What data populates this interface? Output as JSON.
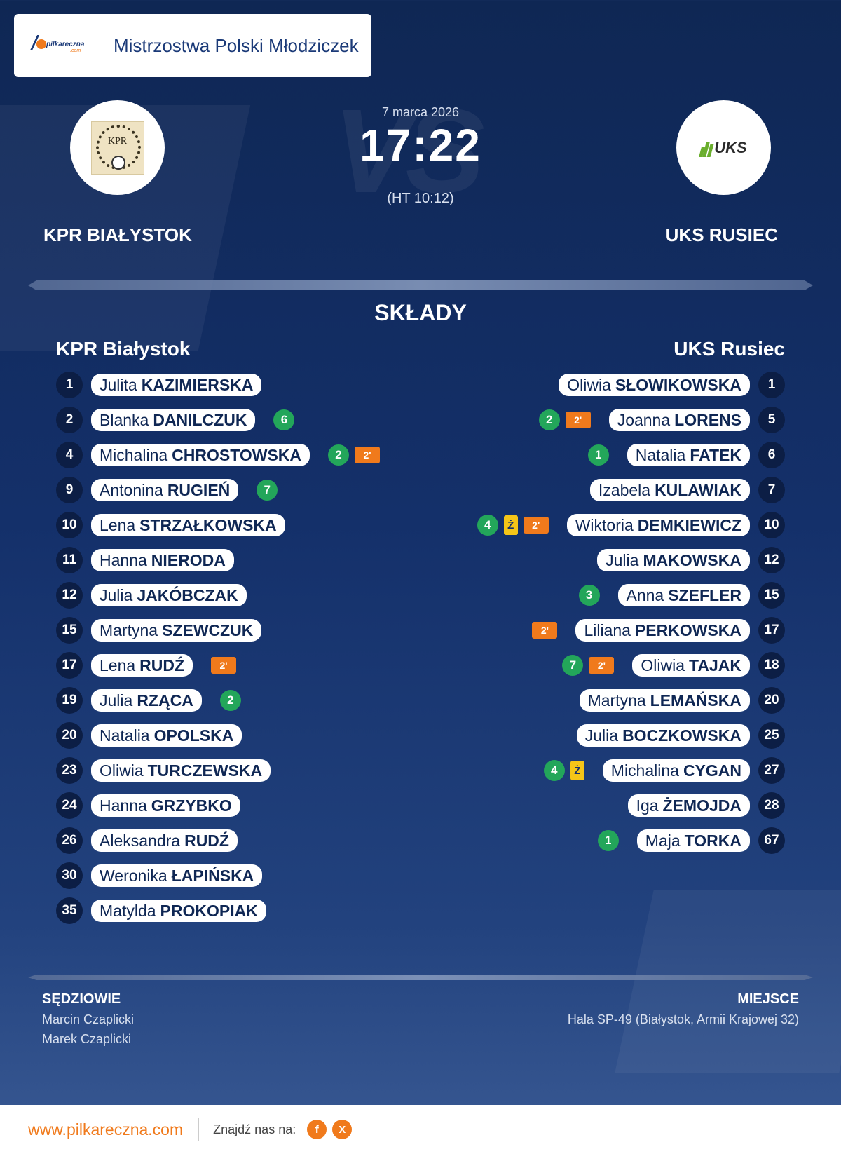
{
  "header": {
    "brand_text": "pilkareczna",
    "brand_sub": ".com",
    "competition": "Mistrzostwa Polski Młodziczek"
  },
  "match": {
    "date": "7 marca 2026",
    "score": "17:22",
    "halftime": "(HT 10:12)",
    "watermark": "VS"
  },
  "home": {
    "name": "KPR BIAŁYSTOK",
    "lineup_title": "KPR Białystok",
    "crest_text": "KPR"
  },
  "away": {
    "name": "UKS RUSIEC",
    "lineup_title": "UKS Rusiec",
    "crest_text": "UKS"
  },
  "lineups_title": "SKŁADY",
  "home_players": [
    {
      "num": "1",
      "first": "Julita",
      "last": "KAZIMIERSKA",
      "goals": "",
      "yellow": "",
      "susp": ""
    },
    {
      "num": "2",
      "first": "Blanka",
      "last": "DANILCZUK",
      "goals": "6",
      "yellow": "",
      "susp": ""
    },
    {
      "num": "4",
      "first": "Michalina",
      "last": "CHROSTOWSKA",
      "goals": "2",
      "yellow": "",
      "susp": "2'"
    },
    {
      "num": "9",
      "first": "Antonina",
      "last": "RUGIEŃ",
      "goals": "7",
      "yellow": "",
      "susp": ""
    },
    {
      "num": "10",
      "first": "Lena",
      "last": "STRZAŁKOWSKA",
      "goals": "",
      "yellow": "",
      "susp": ""
    },
    {
      "num": "11",
      "first": "Hanna",
      "last": "NIERODA",
      "goals": "",
      "yellow": "",
      "susp": ""
    },
    {
      "num": "12",
      "first": "Julia",
      "last": "JAKÓBCZAK",
      "goals": "",
      "yellow": "",
      "susp": ""
    },
    {
      "num": "15",
      "first": "Martyna",
      "last": "SZEWCZUK",
      "goals": "",
      "yellow": "",
      "susp": ""
    },
    {
      "num": "17",
      "first": "Lena",
      "last": "RUDŹ",
      "goals": "",
      "yellow": "",
      "susp": "2'"
    },
    {
      "num": "19",
      "first": "Julia",
      "last": "RZĄCA",
      "goals": "2",
      "yellow": "",
      "susp": ""
    },
    {
      "num": "20",
      "first": "Natalia",
      "last": "OPOLSKA",
      "goals": "",
      "yellow": "",
      "susp": ""
    },
    {
      "num": "23",
      "first": "Oliwia",
      "last": "TURCZEWSKA",
      "goals": "",
      "yellow": "",
      "susp": ""
    },
    {
      "num": "24",
      "first": "Hanna",
      "last": "GRZYBKO",
      "goals": "",
      "yellow": "",
      "susp": ""
    },
    {
      "num": "26",
      "first": "Aleksandra",
      "last": "RUDŹ",
      "goals": "",
      "yellow": "",
      "susp": ""
    },
    {
      "num": "30",
      "first": "Weronika",
      "last": "ŁAPIŃSKA",
      "goals": "",
      "yellow": "",
      "susp": ""
    },
    {
      "num": "35",
      "first": "Matylda",
      "last": "PROKOPIAK",
      "goals": "",
      "yellow": "",
      "susp": ""
    }
  ],
  "away_players": [
    {
      "num": "1",
      "first": "Oliwia",
      "last": "SŁOWIKOWSKA",
      "goals": "",
      "yellow": "",
      "susp": ""
    },
    {
      "num": "5",
      "first": "Joanna",
      "last": "LORENS",
      "goals": "2",
      "yellow": "",
      "susp": "2'"
    },
    {
      "num": "6",
      "first": "Natalia",
      "last": "FATEK",
      "goals": "1",
      "yellow": "",
      "susp": ""
    },
    {
      "num": "7",
      "first": "Izabela",
      "last": "KULAWIAK",
      "goals": "",
      "yellow": "",
      "susp": ""
    },
    {
      "num": "10",
      "first": "Wiktoria",
      "last": "DEMKIEWICZ",
      "goals": "4",
      "yellow": "Ż",
      "susp": "2'"
    },
    {
      "num": "12",
      "first": "Julia",
      "last": "MAKOWSKA",
      "goals": "",
      "yellow": "",
      "susp": ""
    },
    {
      "num": "15",
      "first": "Anna",
      "last": "SZEFLER",
      "goals": "3",
      "yellow": "",
      "susp": ""
    },
    {
      "num": "17",
      "first": "Liliana",
      "last": "PERKOWSKA",
      "goals": "",
      "yellow": "",
      "susp": "2'"
    },
    {
      "num": "18",
      "first": "Oliwia",
      "last": "TAJAK",
      "goals": "7",
      "yellow": "",
      "susp": "2'"
    },
    {
      "num": "20",
      "first": "Martyna",
      "last": "LEMAŃSKA",
      "goals": "",
      "yellow": "",
      "susp": ""
    },
    {
      "num": "25",
      "first": "Julia",
      "last": "BOCZKOWSKA",
      "goals": "",
      "yellow": "",
      "susp": ""
    },
    {
      "num": "27",
      "first": "Michalina",
      "last": "CYGAN",
      "goals": "4",
      "yellow": "Ż",
      "susp": ""
    },
    {
      "num": "28",
      "first": "Iga",
      "last": "ŻEMOJDA",
      "goals": "",
      "yellow": "",
      "susp": ""
    },
    {
      "num": "67",
      "first": "Maja",
      "last": "TORKA",
      "goals": "1",
      "yellow": "",
      "susp": ""
    }
  ],
  "officials": {
    "referees_label": "SĘDZIOWIE",
    "referees": [
      "Marcin Czaplicki",
      "Marek Czaplicki"
    ],
    "venue_label": "MIEJSCE",
    "venue": "Hala SP-49 (Białystok, Armii Krajowej 32)"
  },
  "footer": {
    "site": "www.pilkareczna.com",
    "find_us": "Znajdź nas na:",
    "social": [
      {
        "icon": "facebook-icon",
        "glyph": "f"
      },
      {
        "icon": "x-icon",
        "glyph": "X"
      }
    ]
  },
  "colors": {
    "background": "#14306a",
    "accent": "#f07a1c",
    "goal": "#23a65a",
    "yellow_card": "#f5c518",
    "number_badge": "#0c1e45"
  }
}
